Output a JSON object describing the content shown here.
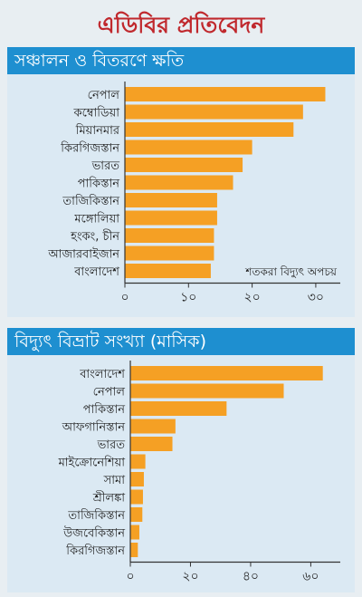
{
  "page": {
    "title": "এডিবির প্রতিবেদন",
    "background": "#e8eef2",
    "header_color": "#1e8fd0",
    "bar_color": "#f5a024"
  },
  "chart_data": [
    {
      "type": "bar",
      "orientation": "horizontal",
      "title": "সঞ্চালন ও বিতরণে ক্ষতি",
      "annotation": "শতকরা বিদ্যুৎ অপচয়",
      "categories": [
        "নেপাল",
        "কম্বোডিয়া",
        "মিয়ানমার",
        "কিরগিজস্তান",
        "ভারত",
        "পাকিস্তান",
        "তাজিকিস্তান",
        "মঙ্গোলিয়া",
        "হংকং, চীন",
        "আজারবাইজান",
        "বাংলাদেশ"
      ],
      "values": [
        31.5,
        28,
        26.5,
        20,
        18.5,
        17,
        14.5,
        14.5,
        14,
        14,
        13.5
      ],
      "xlim": [
        0,
        33
      ],
      "xticks": [
        0,
        10,
        20,
        30
      ],
      "xtick_labels": [
        "০",
        "১০",
        "২০",
        "৩০"
      ],
      "grid": false
    },
    {
      "type": "bar",
      "orientation": "horizontal",
      "title": "বিদ্যুৎ বিভ্রাট সংখ্যা (মাসিক)",
      "categories": [
        "বাংলাদেশ",
        "নেপাল",
        "পাকিস্তান",
        "আফগানিস্তান",
        "ভারত",
        "মাইক্রোনেশিয়া",
        "সামা",
        "শ্রীলঙ্কা",
        "তাজিকিস্তান",
        "উজবেকিস্তান",
        "কিরগিজস্তান"
      ],
      "values": [
        64,
        51,
        32,
        15,
        14,
        5,
        4.5,
        4.2,
        4,
        3,
        2.5
      ],
      "xlim": [
        0,
        68
      ],
      "xticks": [
        0,
        20,
        40,
        60
      ],
      "xtick_labels": [
        "০",
        "২০",
        "৪০",
        "৬০"
      ],
      "grid": false
    }
  ]
}
